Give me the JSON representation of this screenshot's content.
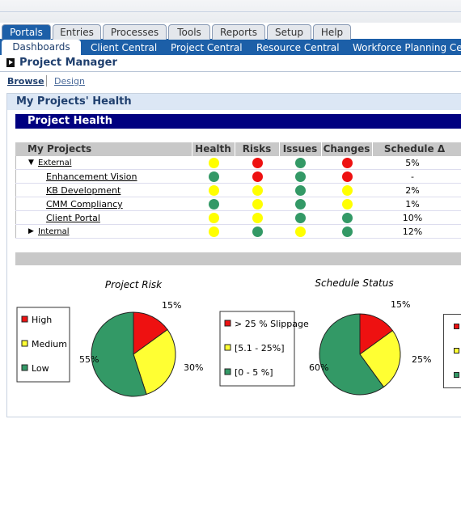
{
  "nav": {
    "tabs": [
      "Portals",
      "Entries",
      "Processes",
      "Tools",
      "Reports",
      "Setup",
      "Help"
    ],
    "subtabs": [
      "Dashboards",
      "Client Central",
      "Project Central",
      "Resource Central",
      "Workforce Planning Center"
    ]
  },
  "page_title": "Project Manager",
  "views": [
    "Browse",
    "Design"
  ],
  "panel_title": "My Projects' Health",
  "section_title": "Project Health",
  "table": {
    "columns": [
      "My Projects",
      "Health",
      "Risks",
      "Issues",
      "Changes",
      "Schedule Δ"
    ],
    "rows": [
      {
        "name": "External",
        "expanded": true,
        "status": [
          "#ffff00",
          "#ee1111",
          "#339966",
          "#ee1111"
        ],
        "schedule": "5%"
      },
      {
        "name": "Enhancement Vision",
        "status": [
          "#339966",
          "#ee1111",
          "#339966",
          "#ee1111"
        ],
        "schedule": "-"
      },
      {
        "name": "KB Development",
        "status": [
          "#ffff00",
          "#ffff00",
          "#339966",
          "#ffff00"
        ],
        "schedule": "2%"
      },
      {
        "name": "CMM Compliancy",
        "status": [
          "#339966",
          "#ffff00",
          "#339966",
          "#ffff00"
        ],
        "schedule": "1%"
      },
      {
        "name": "Client Portal",
        "status": [
          "#ffff00",
          "#ffff00",
          "#339966",
          "#339966"
        ],
        "schedule": "10%"
      },
      {
        "name": "Internal",
        "expanded": false,
        "status": [
          "#ffff00",
          "#339966",
          "#ffff00",
          "#339966"
        ],
        "schedule": "12%"
      }
    ]
  },
  "charts": [
    {
      "type": "pie",
      "title": "Project Risk",
      "categories": [
        "High",
        "Medium",
        "Low"
      ],
      "values": [
        15,
        30,
        55
      ],
      "value_labels": [
        "15%",
        "30%",
        "55%"
      ],
      "colors": [
        "#ee1111",
        "#ffff33",
        "#339966"
      ]
    },
    {
      "type": "pie",
      "title": "Schedule Status",
      "categories": [
        "> 25 % Slippage",
        "[5.1 - 25%]",
        "[0 - 5 %]"
      ],
      "values": [
        15,
        25,
        60
      ],
      "value_labels": [
        "15%",
        "25%",
        "60%"
      ],
      "colors": [
        "#ee1111",
        "#ffff33",
        "#339966"
      ]
    }
  ]
}
